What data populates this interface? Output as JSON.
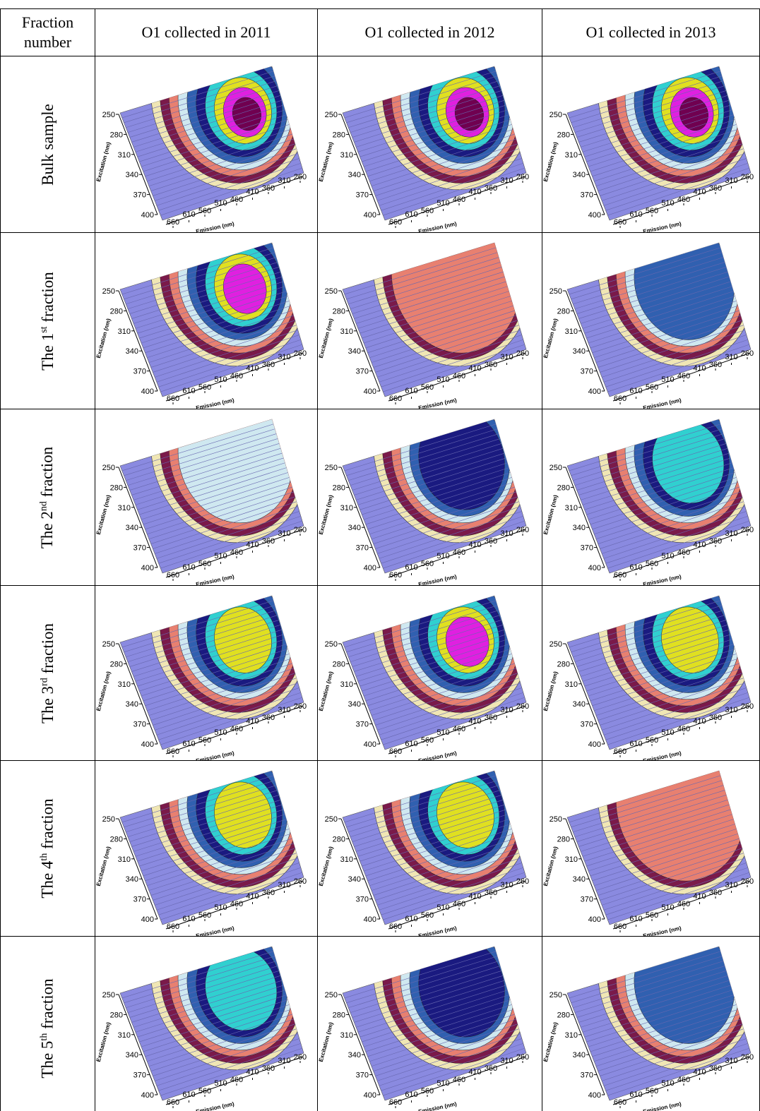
{
  "header": {
    "fraction_number": "Fraction number",
    "columns": [
      "O1 collected in 2011",
      "O1 collected in 2012",
      "O1 collected in 2013"
    ]
  },
  "rows": [
    {
      "label": [
        "Bulk sample"
      ]
    },
    {
      "label": [
        "The 1",
        "st",
        " fraction"
      ]
    },
    {
      "label": [
        "The 2",
        "nd",
        " fraction"
      ]
    },
    {
      "label": [
        "The 3",
        "rd",
        " fraction"
      ]
    },
    {
      "label": [
        "The 4",
        "th",
        " fraction"
      ]
    },
    {
      "label": [
        "The 5",
        "th",
        " fraction"
      ]
    }
  ],
  "plot_axes": {
    "excitation_label": "Excitation (nm)",
    "emission_label": "Emission (nm)",
    "excitation_ticks": [
      250,
      280,
      310,
      340,
      370,
      400
    ],
    "emission_ticks": [
      660,
      610,
      560,
      510,
      460,
      410,
      360,
      310,
      260
    ]
  }
}
